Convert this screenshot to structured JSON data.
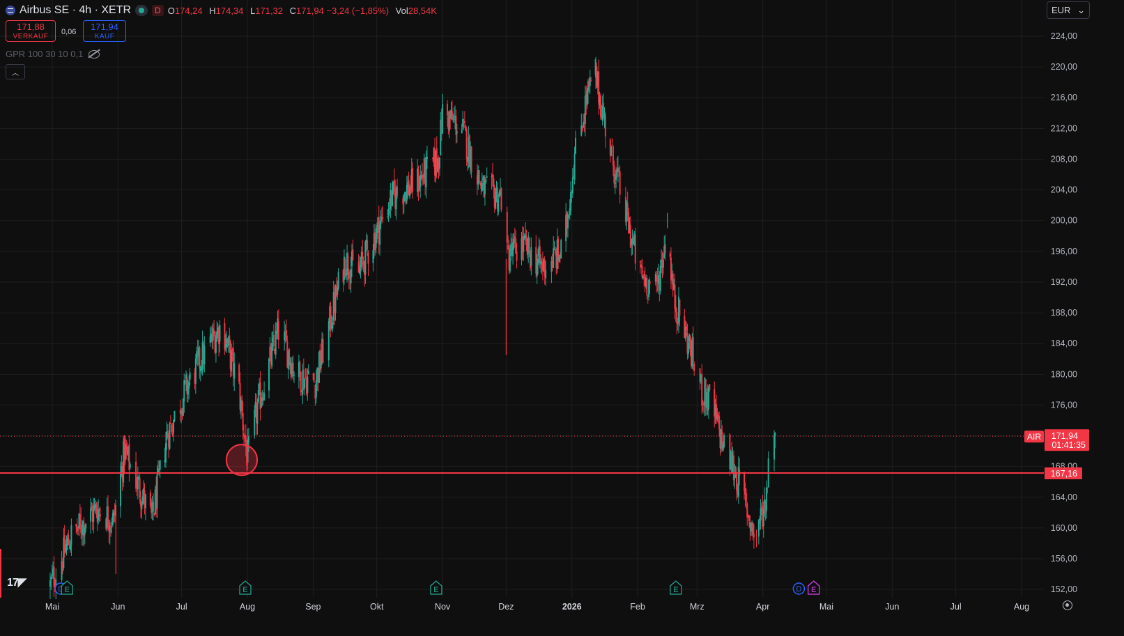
{
  "header": {
    "title": "Airbus SE · 4h · XETR",
    "badge": "D",
    "ohlc": [
      {
        "label": "O",
        "value": "174,24"
      },
      {
        "label": "H",
        "value": "174,34"
      },
      {
        "label": "L",
        "value": "171,32"
      },
      {
        "label": "C",
        "value": "171,94 −3,24 (−1,85%)"
      },
      {
        "label": "Vol",
        "value": "28,54K"
      }
    ]
  },
  "trade": {
    "sell_price": "171,88",
    "sell_label": "VERKAUF",
    "spread": "0,06",
    "buy_price": "171,94",
    "buy_label": "KAUF"
  },
  "indicator": {
    "label": "GPR 100 30 10 0,1"
  },
  "currency": {
    "value": "EUR"
  },
  "colors": {
    "background": "#0f0f0f",
    "up": "#22ab94",
    "down": "#f23645",
    "grid": "#1f1f1f",
    "level": "#f23645"
  },
  "icons": [
    "eye-off-icon",
    "chevron-up-icon",
    "chevron-down-icon",
    "settings-icon",
    "tradingview-logo"
  ],
  "chart_data": {
    "type": "candlestick",
    "symbol": "AIR",
    "timeframe": "4h",
    "y_ticks": [
      "224,00",
      "220,00",
      "216,00",
      "212,00",
      "208,00",
      "204,00",
      "200,00",
      "196,00",
      "192,00",
      "188,00",
      "184,00",
      "180,00",
      "176,00",
      "172,00",
      "168,00",
      "164,00",
      "160,00",
      "156,00",
      "152,00"
    ],
    "ylim": [
      151,
      225
    ],
    "x_ticks": [
      {
        "label": "Mai",
        "date": "2025-05-01"
      },
      {
        "label": "Jun",
        "date": "2025-06-01"
      },
      {
        "label": "Jul",
        "date": "2025-07-01"
      },
      {
        "label": "Aug",
        "date": "2025-08-01"
      },
      {
        "label": "Sep",
        "date": "2025-09-01"
      },
      {
        "label": "Okt",
        "date": "2025-10-01"
      },
      {
        "label": "Nov",
        "date": "2025-11-01"
      },
      {
        "label": "Dez",
        "date": "2025-12-01"
      },
      {
        "label": "2026",
        "date": "2026-01-01",
        "bold": true
      },
      {
        "label": "Feb",
        "date": "2026-02-01"
      },
      {
        "label": "Mrz",
        "date": "2026-03-01"
      },
      {
        "label": "Apr",
        "date": "2026-04-01"
      },
      {
        "label": "Mai",
        "date": "2026-05-01"
      },
      {
        "label": "Jun",
        "date": "2026-06-01"
      },
      {
        "label": "Jul",
        "date": "2026-07-01"
      },
      {
        "label": "Aug",
        "date": "2026-08-01"
      }
    ],
    "price_path": [
      {
        "date": "2025-04-30",
        "price": 152.5
      },
      {
        "date": "2025-05-10",
        "price": 159
      },
      {
        "date": "2025-05-22",
        "price": 162.5
      },
      {
        "date": "2025-05-30",
        "price": 161
      },
      {
        "date": "2025-06-04",
        "price": 170
      },
      {
        "date": "2025-06-10",
        "price": 166
      },
      {
        "date": "2025-06-17",
        "price": 161
      },
      {
        "date": "2025-06-24",
        "price": 172
      },
      {
        "date": "2025-07-03",
        "price": 178
      },
      {
        "date": "2025-07-10",
        "price": 182
      },
      {
        "date": "2025-07-20",
        "price": 186.5
      },
      {
        "date": "2025-07-28",
        "price": 178
      },
      {
        "date": "2025-08-01",
        "price": 169
      },
      {
        "date": "2025-08-06",
        "price": 176
      },
      {
        "date": "2025-08-16",
        "price": 186
      },
      {
        "date": "2025-08-24",
        "price": 180
      },
      {
        "date": "2025-09-02",
        "price": 179
      },
      {
        "date": "2025-09-10",
        "price": 188
      },
      {
        "date": "2025-09-16",
        "price": 195
      },
      {
        "date": "2025-09-22",
        "price": 193
      },
      {
        "date": "2025-09-30",
        "price": 198
      },
      {
        "date": "2025-10-08",
        "price": 203
      },
      {
        "date": "2025-10-20",
        "price": 205
      },
      {
        "date": "2025-10-30",
        "price": 208
      },
      {
        "date": "2025-11-01",
        "price": 214
      },
      {
        "date": "2025-11-10",
        "price": 212
      },
      {
        "date": "2025-11-20",
        "price": 204
      },
      {
        "date": "2025-11-30",
        "price": 203
      },
      {
        "date": "2025-12-01",
        "price": 195
      },
      {
        "date": "2025-12-08",
        "price": 197
      },
      {
        "date": "2025-12-18",
        "price": 194
      },
      {
        "date": "2025-12-28",
        "price": 196
      },
      {
        "date": "2026-01-02",
        "price": 208
      },
      {
        "date": "2026-01-08",
        "price": 216
      },
      {
        "date": "2026-01-12",
        "price": 219
      },
      {
        "date": "2026-01-20",
        "price": 208
      },
      {
        "date": "2026-01-28",
        "price": 199
      },
      {
        "date": "2026-02-02",
        "price": 193
      },
      {
        "date": "2026-02-10",
        "price": 191
      },
      {
        "date": "2026-02-15",
        "price": 199
      },
      {
        "date": "2026-02-18",
        "price": 190
      },
      {
        "date": "2026-02-25",
        "price": 184
      },
      {
        "date": "2026-03-03",
        "price": 178
      },
      {
        "date": "2026-03-08",
        "price": 176
      },
      {
        "date": "2026-03-14",
        "price": 170
      },
      {
        "date": "2026-03-18",
        "price": 168
      },
      {
        "date": "2026-03-24",
        "price": 163
      },
      {
        "date": "2026-03-28",
        "price": 159
      },
      {
        "date": "2026-04-02",
        "price": 163
      },
      {
        "date": "2026-04-06",
        "price": 175
      },
      {
        "date": "2026-04-07",
        "price": 172
      }
    ],
    "extremes": [
      {
        "date": "2025-08-01",
        "low": 167.5
      },
      {
        "date": "2025-11-01",
        "high": 216.5
      },
      {
        "date": "2025-12-01",
        "low": 182.5
      },
      {
        "date": "2026-01-12",
        "high": 221
      },
      {
        "date": "2026-02-15",
        "high": 201
      },
      {
        "date": "2026-03-29",
        "low": 157.5
      },
      {
        "date": "2025-05-31",
        "low": 154
      }
    ],
    "current_price": {
      "symbol": "AIR",
      "value": "171,94",
      "countdown": "01:41:35",
      "price": 171.94
    },
    "horizontal_line": {
      "value": "167,16",
      "price": 167.16
    },
    "highlight_circle": {
      "date": "2025-07-31",
      "price": 167.5,
      "radius_days": 7.5
    },
    "event_markers": [
      {
        "date": "2025-05-05",
        "kind": "D"
      },
      {
        "date": "2025-05-08",
        "kind": "E"
      },
      {
        "date": "2025-07-31",
        "kind": "E"
      },
      {
        "date": "2025-10-29",
        "kind": "E"
      },
      {
        "date": "2026-02-19",
        "kind": "E"
      },
      {
        "date": "2026-04-18",
        "kind": "D"
      },
      {
        "date": "2026-04-25",
        "kind": "E",
        "upcoming": true
      }
    ]
  }
}
